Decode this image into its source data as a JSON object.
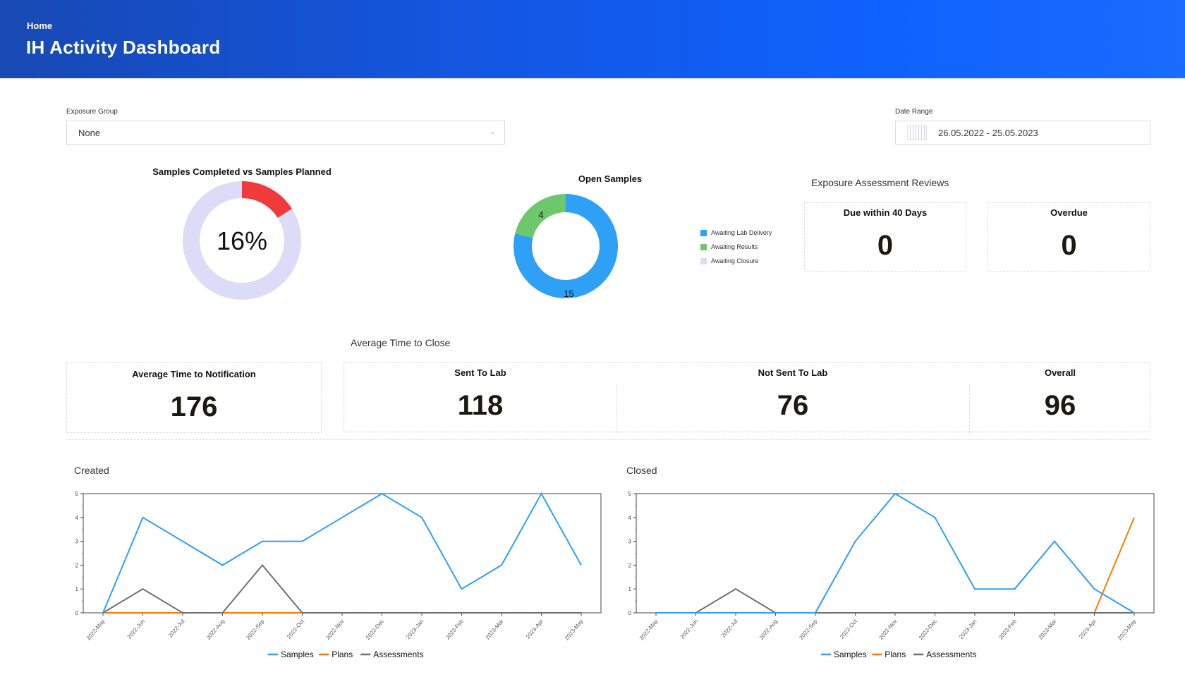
{
  "header": {
    "breadcrumb": "Home",
    "title": "IH Activity Dashboard"
  },
  "filters": {
    "exposure_group": {
      "label": "Exposure Group",
      "value": "None"
    },
    "date_range": {
      "label": "Date Range",
      "value": "26.05.2022 - 25.05.2023"
    }
  },
  "completed_vs_planned": {
    "title": "Samples Completed vs Samples Planned",
    "percent": 16,
    "percent_label": "16%",
    "colors": {
      "completed": "#f03b3b",
      "remaining": "#dcdcf8"
    }
  },
  "open_samples": {
    "title": "Open Samples",
    "segments": [
      {
        "label": "Awaiting Lab Delivery",
        "value": 15,
        "value_label": "15",
        "color": "#2ea0f5"
      },
      {
        "label": "Awaiting Results",
        "value": 4,
        "value_label": "4",
        "color": "#6cc86a"
      },
      {
        "label": "Awaiting Closure",
        "value": 0,
        "value_label": "",
        "color": "#dcdcf8"
      }
    ]
  },
  "reviews": {
    "title": "Exposure Assessment Reviews",
    "cards": [
      {
        "label": "Due within 40 Days",
        "value": "0"
      },
      {
        "label": "Overdue",
        "value": "0"
      }
    ]
  },
  "notification": {
    "label": "Average Time to Notification",
    "value": "176"
  },
  "close": {
    "title": "Average Time to Close",
    "items": [
      {
        "label": "Sent To Lab",
        "value": "118"
      },
      {
        "label": "Not Sent To Lab",
        "value": "76"
      },
      {
        "label": "Overall",
        "value": "96"
      }
    ]
  },
  "chart_data": [
    {
      "type": "line",
      "title": "Created",
      "ylim": [
        0,
        5
      ],
      "yticks": [
        0,
        1,
        2,
        3,
        4,
        5
      ],
      "categories": [
        "2022-May",
        "2022-Jun",
        "2022-Jul",
        "2022-Aug",
        "2022-Sep",
        "2022-Oct",
        "2022-Nov",
        "2022-Dec",
        "2023-Jan",
        "2023-Feb",
        "2023-Mar",
        "2023-Apr",
        "2023-May"
      ],
      "legend": "bottom",
      "series": [
        {
          "name": "Samples",
          "color": "#2ea0f5",
          "values": [
            0,
            4,
            3,
            2,
            3,
            3,
            4,
            5,
            4,
            1,
            2,
            5,
            2
          ]
        },
        {
          "name": "Plans",
          "color": "#ff7a00",
          "values": [
            0,
            0,
            0,
            0,
            0,
            0,
            0,
            0,
            0,
            0,
            0,
            0,
            0
          ]
        },
        {
          "name": "Assessments",
          "color": "#6e6e78",
          "values": [
            0,
            1,
            0,
            0,
            2,
            0,
            0,
            0,
            0,
            0,
            0,
            0,
            0
          ]
        }
      ]
    },
    {
      "type": "line",
      "title": "Closed",
      "ylim": [
        0,
        5
      ],
      "yticks": [
        0,
        1,
        2,
        3,
        4,
        5
      ],
      "categories": [
        "2022-May",
        "2022-Jun",
        "2022-Jul",
        "2022-Aug",
        "2022-Sep",
        "2022-Oct",
        "2022-Nov",
        "2022-Dec",
        "2023-Jan",
        "2023-Feb",
        "2023-Mar",
        "2023-Apr",
        "2023-May"
      ],
      "legend": "bottom",
      "series": [
        {
          "name": "Samples",
          "color": "#2ea0f5",
          "values": [
            0,
            0,
            0,
            0,
            0,
            3,
            5,
            4,
            1,
            1,
            3,
            1,
            0
          ]
        },
        {
          "name": "Plans",
          "color": "#ff7a00",
          "values": [
            0,
            0,
            0,
            0,
            0,
            0,
            0,
            0,
            0,
            0,
            0,
            0,
            4
          ]
        },
        {
          "name": "Assessments",
          "color": "#6e6e78",
          "values": [
            0,
            0,
            1,
            0,
            0,
            0,
            0,
            0,
            0,
            0,
            0,
            0,
            0
          ]
        }
      ]
    }
  ]
}
